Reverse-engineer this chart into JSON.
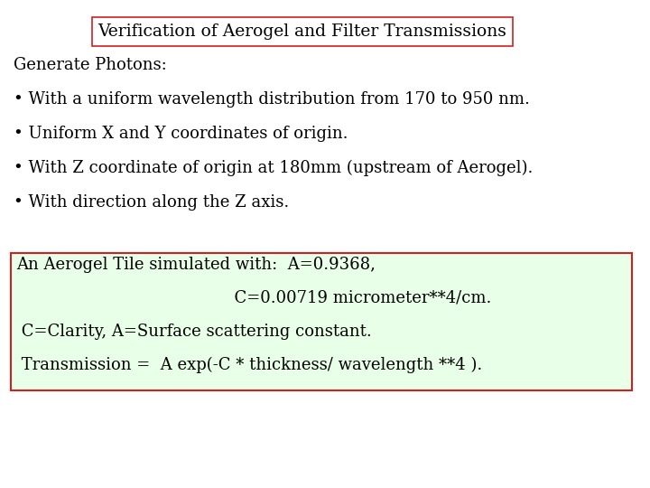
{
  "title": "Verification of Aerogel and Filter Transmissions",
  "title_box_color": "#ffffff",
  "title_box_edge_color": "#cc2222",
  "bg_color": "#ffffff",
  "font_family": "serif",
  "title_fontsize": 13.5,
  "body_fontsize": 13.0,
  "section1_lines": [
    "Generate Photons:",
    "• With a uniform wavelength distribution from 170 to 950 nm.",
    "• Uniform X and Y coordinates of origin.",
    "• With Z coordinate of origin at 180mm (upstream of Aerogel).",
    "• With direction along the Z axis."
  ],
  "section2_lines": [
    "An Aerogel Tile simulated with:  A=0.9368,",
    "                                          C=0.00719 micrometer**4/cm.",
    " C=Clarity, A=Surface scattering constant.",
    " Transmission =  A exp(-C * thickness/ wavelength **4 )."
  ],
  "section2_bg": "#e8ffe8",
  "section2_edge_color": "#cc2222"
}
